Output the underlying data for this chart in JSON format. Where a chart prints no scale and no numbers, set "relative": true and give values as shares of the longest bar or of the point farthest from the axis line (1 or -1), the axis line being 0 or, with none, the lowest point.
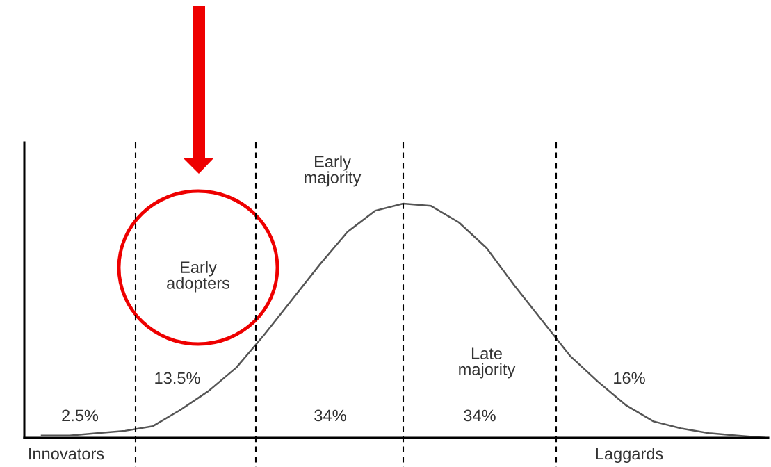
{
  "chart_data": {
    "type": "line",
    "relative": true,
    "categories": [
      null,
      null,
      null,
      null,
      null,
      null,
      null,
      null,
      null,
      null,
      null,
      null,
      null,
      null,
      null,
      null,
      null,
      null,
      null,
      null,
      null,
      null,
      null,
      null,
      null,
      null,
      null
    ],
    "series": [
      {
        "color": "#555555",
        "values": [
          0.01,
          0.01,
          0.02,
          0.03,
          0.05,
          0.12,
          0.2,
          0.3,
          0.44,
          0.59,
          0.74,
          0.88,
          0.97,
          1,
          0.99,
          0.92,
          0.81,
          0.65,
          0.5,
          0.35,
          0.24,
          0.14,
          0.07,
          0.04,
          0.02,
          0.01,
          0
        ]
      }
    ],
    "annotations": [
      "Innovators",
      "2.5%",
      "Early\nadopters",
      "13.5%",
      "Early\nmajority",
      "34%",
      "Late\nmajority",
      "34%",
      "16%",
      "Laggards"
    ],
    "legend": false,
    "grid": false,
    "marker": "none",
    "line_style": "solid"
  }
}
